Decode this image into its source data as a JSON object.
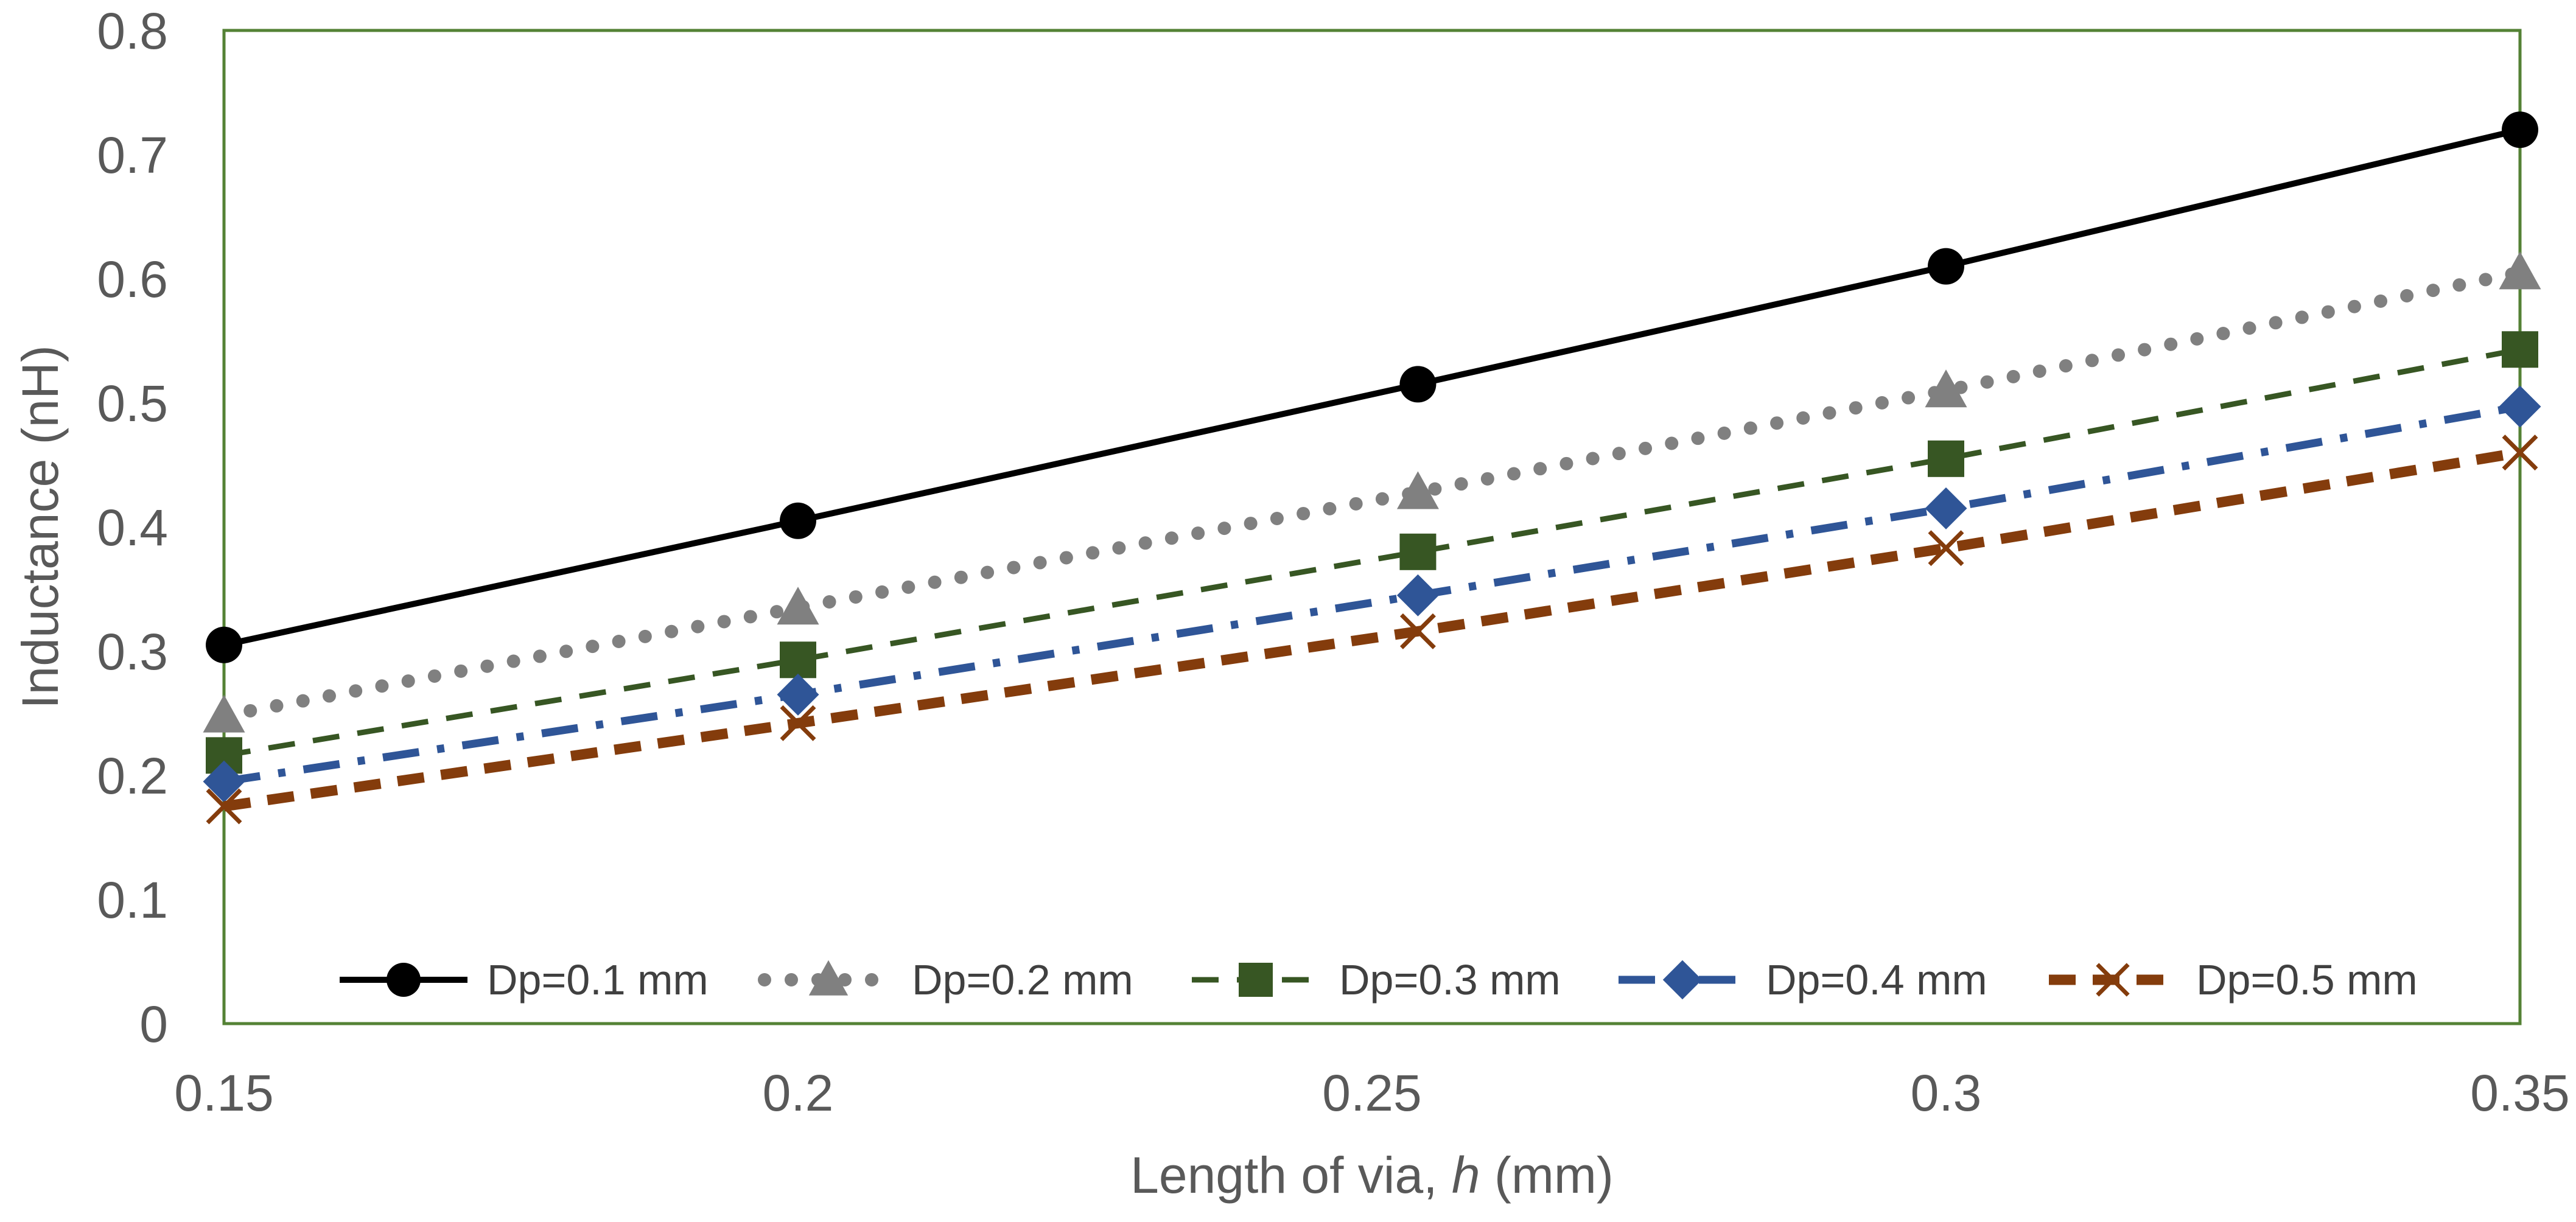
{
  "chart_data": {
    "type": "line",
    "title": "",
    "xlabel_prefix": "Length of via, ",
    "xlabel_var": "h",
    "xlabel_suffix": " (mm)",
    "ylabel": "Inductance (nH)",
    "xlim": [
      0.15,
      0.35
    ],
    "ylim": [
      0,
      0.8
    ],
    "x_ticks": [
      0.15,
      0.2,
      0.25,
      0.3,
      0.35
    ],
    "x_tick_labels": [
      "0.15",
      "0.2",
      "0.25",
      "0.3",
      "0.35"
    ],
    "y_ticks": [
      0,
      0.1,
      0.2,
      0.3,
      0.4,
      0.5,
      0.6,
      0.7,
      0.8
    ],
    "y_tick_labels": [
      "0",
      "0.1",
      "0.2",
      "0.3",
      "0.4",
      "0.5",
      "0.6",
      "0.7",
      "0.8"
    ],
    "grid": false,
    "legend_position": "bottom-inside",
    "plot_border_color": "#548235",
    "x": [
      0.15,
      0.2,
      0.254,
      0.3,
      0.35
    ],
    "series": [
      {
        "name": "Dp=0.1 mm",
        "values": [
          0.305,
          0.405,
          0.515,
          0.61,
          0.72
        ],
        "color": "#000000",
        "line_style": "solid",
        "marker": "circle"
      },
      {
        "name": "Dp=0.2 mm",
        "values": [
          0.248,
          0.335,
          0.428,
          0.51,
          0.605
        ],
        "color": "#808080",
        "line_style": "round-dot",
        "marker": "triangle"
      },
      {
        "name": "Dp=0.3 mm",
        "values": [
          0.216,
          0.293,
          0.38,
          0.455,
          0.543
        ],
        "color": "#375623",
        "line_style": "dash",
        "marker": "square"
      },
      {
        "name": "Dp=0.4 mm",
        "values": [
          0.195,
          0.265,
          0.345,
          0.415,
          0.497
        ],
        "color": "#2F5597",
        "line_style": "dash-dot",
        "marker": "diamond"
      },
      {
        "name": "Dp=0.5 mm",
        "values": [
          0.175,
          0.242,
          0.316,
          0.383,
          0.46
        ],
        "color": "#843C0C",
        "line_style": "dash",
        "marker": "x"
      }
    ]
  }
}
